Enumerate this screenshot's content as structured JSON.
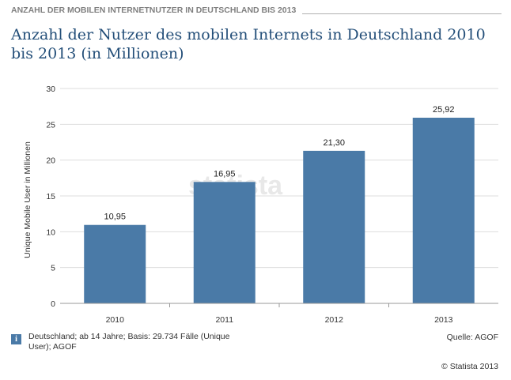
{
  "header": {
    "label": "ANZAHL DER MOBILEN INTERNETNUTZER IN DEUTSCHLAND BIS 2013"
  },
  "chart_data": {
    "type": "bar",
    "title": "Anzahl der Nutzer des mobilen Internets in Deutschland 2010 bis 2013 (in Millionen)",
    "xlabel": "",
    "ylabel": "Unique Mobile User in Millionen",
    "categories": [
      "2010",
      "2011",
      "2012",
      "2013"
    ],
    "values": [
      10.95,
      16.95,
      21.3,
      25.92
    ],
    "value_labels": [
      "10,95",
      "16,95",
      "21,30",
      "25,92"
    ],
    "ylim": [
      0,
      30
    ],
    "yticks": [
      0,
      5,
      10,
      15,
      20,
      25,
      30
    ],
    "grid": true,
    "legend": "none",
    "bar_color": "#4a7aa7",
    "watermark": "statista"
  },
  "footer": {
    "info_icon": "info-icon",
    "note": "Deutschland; ab 14 Jahre; Basis: 29.734 Fälle (Unique User); AGOF",
    "source": "Quelle: AGOF",
    "copyright": "© Statista 2013"
  },
  "colors": {
    "title": "#244f79",
    "bar": "#4a7aa7",
    "header_text": "#7f7f7f",
    "grid": "#dddddd"
  }
}
